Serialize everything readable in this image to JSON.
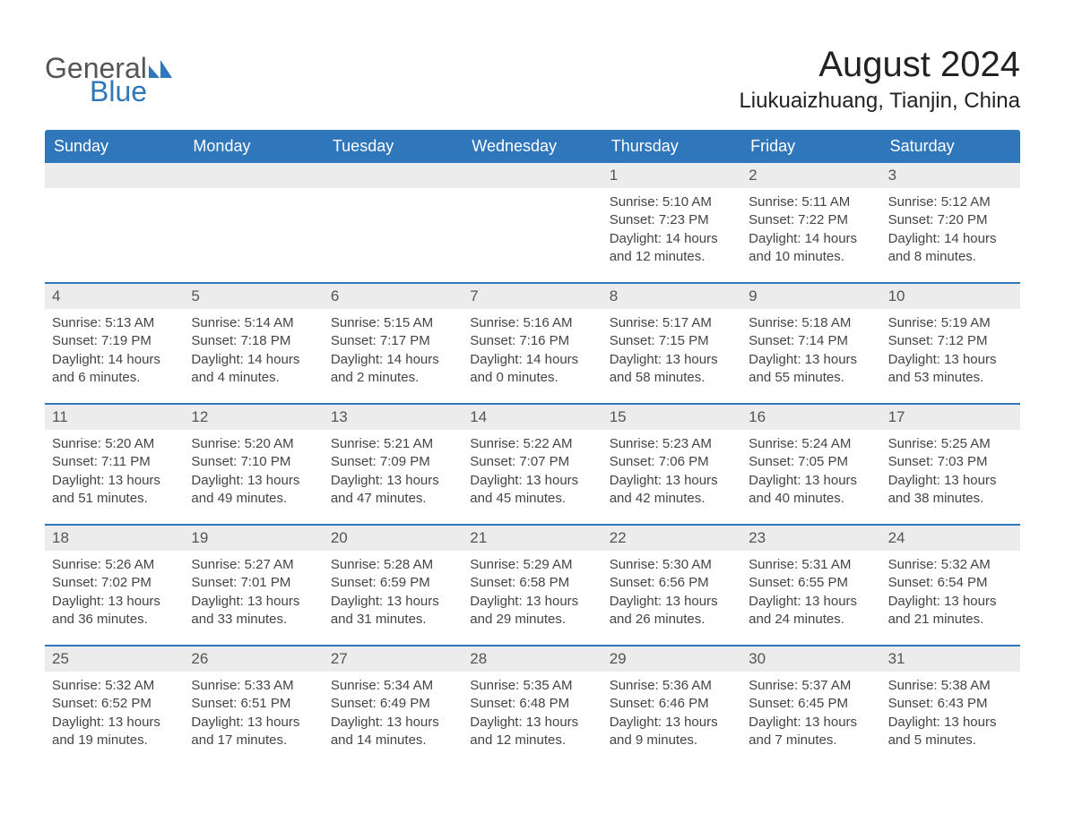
{
  "logo": {
    "word1": "General",
    "word2": "Blue"
  },
  "title": "August 2024",
  "location": "Liukuaizhuang, Tianjin, China",
  "colors": {
    "header_bg": "#2f76bb",
    "header_text": "#ffffff",
    "daynum_bg": "#ececec",
    "daynum_text": "#555555",
    "body_text": "#444444",
    "rule": "#2f76bb",
    "page_bg": "#ffffff",
    "logo_gray": "#555555",
    "logo_blue": "#2f76bb"
  },
  "dow": [
    "Sunday",
    "Monday",
    "Tuesday",
    "Wednesday",
    "Thursday",
    "Friday",
    "Saturday"
  ],
  "weeks": [
    [
      null,
      null,
      null,
      null,
      {
        "n": "1",
        "sunrise": "5:10 AM",
        "sunset": "7:23 PM",
        "daylight": "14 hours and 12 minutes."
      },
      {
        "n": "2",
        "sunrise": "5:11 AM",
        "sunset": "7:22 PM",
        "daylight": "14 hours and 10 minutes."
      },
      {
        "n": "3",
        "sunrise": "5:12 AM",
        "sunset": "7:20 PM",
        "daylight": "14 hours and 8 minutes."
      }
    ],
    [
      {
        "n": "4",
        "sunrise": "5:13 AM",
        "sunset": "7:19 PM",
        "daylight": "14 hours and 6 minutes."
      },
      {
        "n": "5",
        "sunrise": "5:14 AM",
        "sunset": "7:18 PM",
        "daylight": "14 hours and 4 minutes."
      },
      {
        "n": "6",
        "sunrise": "5:15 AM",
        "sunset": "7:17 PM",
        "daylight": "14 hours and 2 minutes."
      },
      {
        "n": "7",
        "sunrise": "5:16 AM",
        "sunset": "7:16 PM",
        "daylight": "14 hours and 0 minutes."
      },
      {
        "n": "8",
        "sunrise": "5:17 AM",
        "sunset": "7:15 PM",
        "daylight": "13 hours and 58 minutes."
      },
      {
        "n": "9",
        "sunrise": "5:18 AM",
        "sunset": "7:14 PM",
        "daylight": "13 hours and 55 minutes."
      },
      {
        "n": "10",
        "sunrise": "5:19 AM",
        "sunset": "7:12 PM",
        "daylight": "13 hours and 53 minutes."
      }
    ],
    [
      {
        "n": "11",
        "sunrise": "5:20 AM",
        "sunset": "7:11 PM",
        "daylight": "13 hours and 51 minutes."
      },
      {
        "n": "12",
        "sunrise": "5:20 AM",
        "sunset": "7:10 PM",
        "daylight": "13 hours and 49 minutes."
      },
      {
        "n": "13",
        "sunrise": "5:21 AM",
        "sunset": "7:09 PM",
        "daylight": "13 hours and 47 minutes."
      },
      {
        "n": "14",
        "sunrise": "5:22 AM",
        "sunset": "7:07 PM",
        "daylight": "13 hours and 45 minutes."
      },
      {
        "n": "15",
        "sunrise": "5:23 AM",
        "sunset": "7:06 PM",
        "daylight": "13 hours and 42 minutes."
      },
      {
        "n": "16",
        "sunrise": "5:24 AM",
        "sunset": "7:05 PM",
        "daylight": "13 hours and 40 minutes."
      },
      {
        "n": "17",
        "sunrise": "5:25 AM",
        "sunset": "7:03 PM",
        "daylight": "13 hours and 38 minutes."
      }
    ],
    [
      {
        "n": "18",
        "sunrise": "5:26 AM",
        "sunset": "7:02 PM",
        "daylight": "13 hours and 36 minutes."
      },
      {
        "n": "19",
        "sunrise": "5:27 AM",
        "sunset": "7:01 PM",
        "daylight": "13 hours and 33 minutes."
      },
      {
        "n": "20",
        "sunrise": "5:28 AM",
        "sunset": "6:59 PM",
        "daylight": "13 hours and 31 minutes."
      },
      {
        "n": "21",
        "sunrise": "5:29 AM",
        "sunset": "6:58 PM",
        "daylight": "13 hours and 29 minutes."
      },
      {
        "n": "22",
        "sunrise": "5:30 AM",
        "sunset": "6:56 PM",
        "daylight": "13 hours and 26 minutes."
      },
      {
        "n": "23",
        "sunrise": "5:31 AM",
        "sunset": "6:55 PM",
        "daylight": "13 hours and 24 minutes."
      },
      {
        "n": "24",
        "sunrise": "5:32 AM",
        "sunset": "6:54 PM",
        "daylight": "13 hours and 21 minutes."
      }
    ],
    [
      {
        "n": "25",
        "sunrise": "5:32 AM",
        "sunset": "6:52 PM",
        "daylight": "13 hours and 19 minutes."
      },
      {
        "n": "26",
        "sunrise": "5:33 AM",
        "sunset": "6:51 PM",
        "daylight": "13 hours and 17 minutes."
      },
      {
        "n": "27",
        "sunrise": "5:34 AM",
        "sunset": "6:49 PM",
        "daylight": "13 hours and 14 minutes."
      },
      {
        "n": "28",
        "sunrise": "5:35 AM",
        "sunset": "6:48 PM",
        "daylight": "13 hours and 12 minutes."
      },
      {
        "n": "29",
        "sunrise": "5:36 AM",
        "sunset": "6:46 PM",
        "daylight": "13 hours and 9 minutes."
      },
      {
        "n": "30",
        "sunrise": "5:37 AM",
        "sunset": "6:45 PM",
        "daylight": "13 hours and 7 minutes."
      },
      {
        "n": "31",
        "sunrise": "5:38 AM",
        "sunset": "6:43 PM",
        "daylight": "13 hours and 5 minutes."
      }
    ]
  ],
  "labels": {
    "sunrise": "Sunrise: ",
    "sunset": "Sunset: ",
    "daylight": "Daylight: "
  }
}
